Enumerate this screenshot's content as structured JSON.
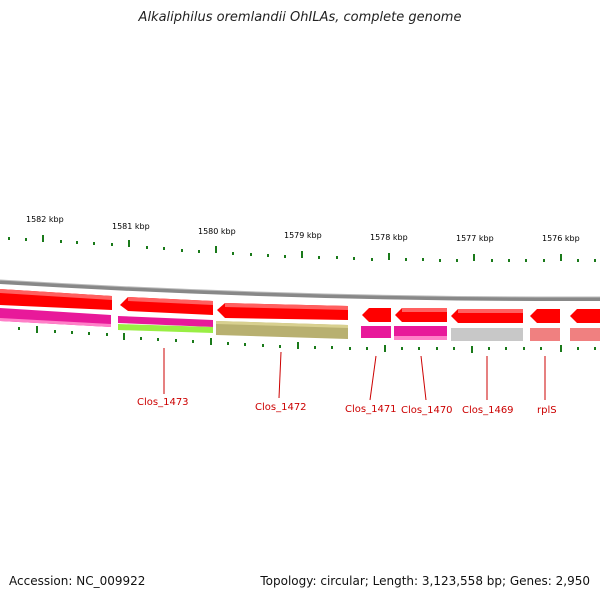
{
  "title": "Alkaliphilus oremlandii OhILAs, complete genome",
  "footer": {
    "accession": "Accession: NC_009922",
    "stats": "Topology: circular; Length: 3,123,558 bp; Genes: 2,950"
  },
  "scale_labels": [
    "1582 kbp",
    "1581 kbp",
    "1580 kbp",
    "1579 kbp",
    "1578 kbp",
    "1577 kbp",
    "1576 kbp"
  ],
  "genes": [
    {
      "label": "Clos_1473",
      "color": "#ff0000"
    },
    {
      "label": "Clos_1472",
      "color": "#ff0000"
    },
    {
      "label": "Clos_1471",
      "color": "#ff0000"
    },
    {
      "label": "Clos_1470",
      "color": "#ff0000"
    },
    {
      "label": "Clos_1469",
      "color": "#ff0000"
    },
    {
      "label": "rplS",
      "color": "#ff0000"
    }
  ],
  "colors": {
    "backbone": "#888888",
    "gene": "#ff0000",
    "tick": "#1a7a1a",
    "label": "#cc0000",
    "magenta": "#e8199a",
    "lime": "#99ee44",
    "olive": "#b8b070",
    "gray": "#c8c8c8",
    "salmon": "#f08080"
  }
}
